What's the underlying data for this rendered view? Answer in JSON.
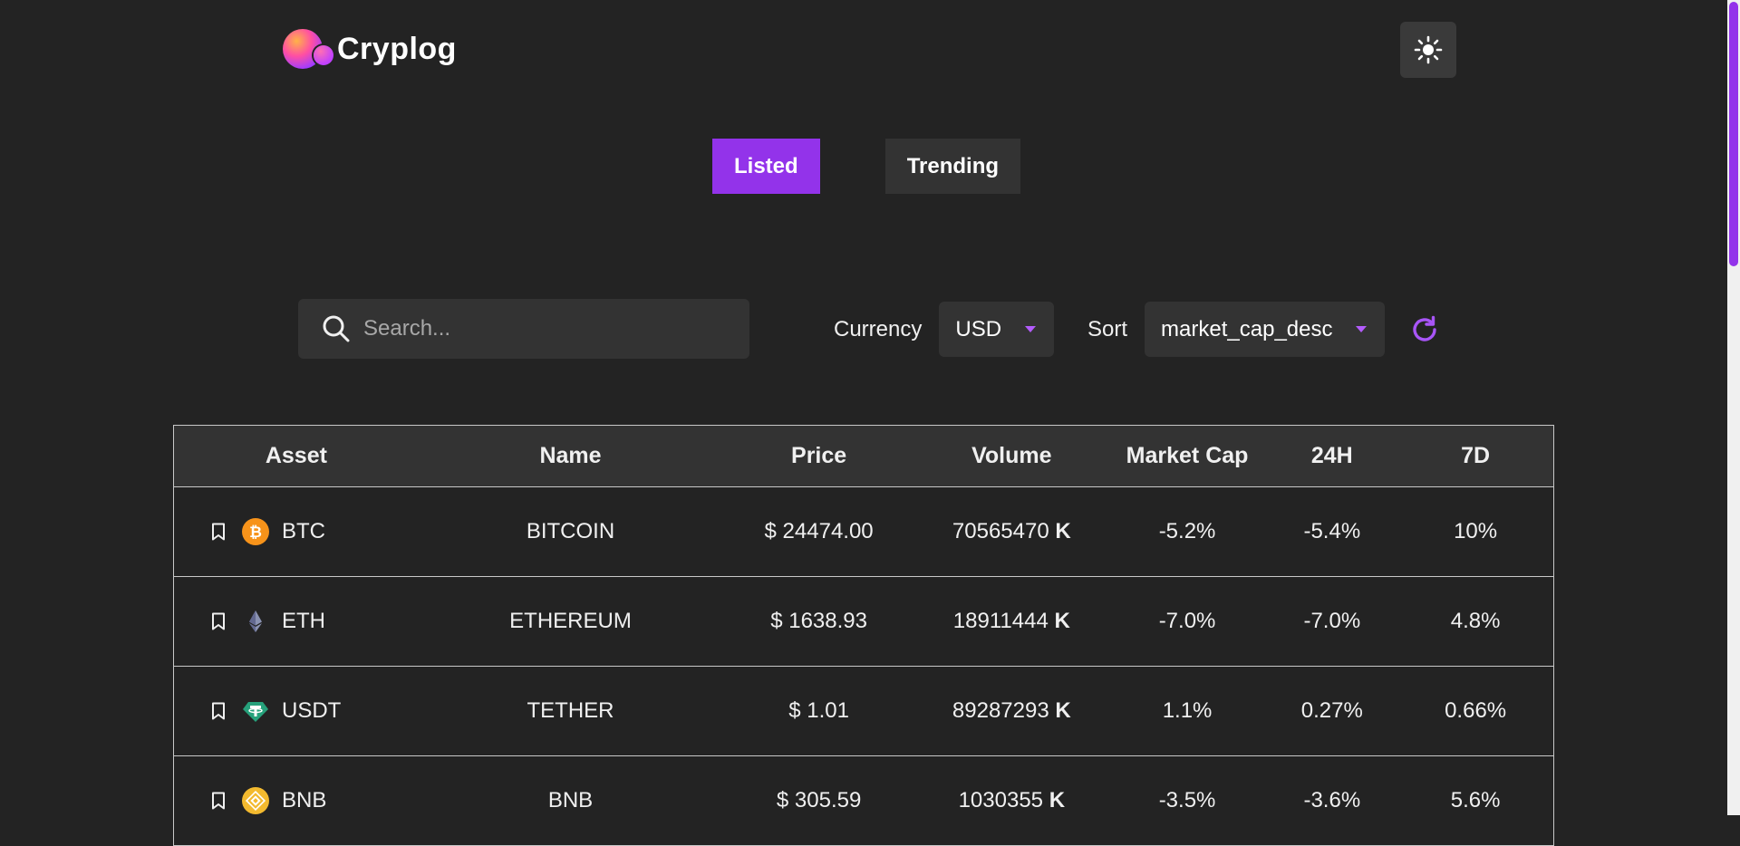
{
  "app": {
    "logo_text": "Cryplog"
  },
  "header": {
    "theme_icon": "sun-icon"
  },
  "tabs": [
    {
      "label": "Listed",
      "active": true
    },
    {
      "label": "Trending",
      "active": false
    }
  ],
  "search": {
    "placeholder": "Search...",
    "value": ""
  },
  "filters": {
    "currency_label": "Currency",
    "currency_value": "USD",
    "sort_label": "Sort",
    "sort_value": "market_cap_desc"
  },
  "table": {
    "columns": [
      "Asset",
      "Name",
      "Price",
      "Volume",
      "Market Cap",
      "24H",
      "7D"
    ],
    "rows": [
      {
        "symbol": "BTC",
        "name": "BITCOIN",
        "price": "$ 24474.00",
        "volume": "70565470",
        "volume_unit": "K",
        "market_cap": "-5.2%",
        "h24": "-5.4%",
        "d7": "10%",
        "icon": "bitcoin-icon"
      },
      {
        "symbol": "ETH",
        "name": "ETHEREUM",
        "price": "$ 1638.93",
        "volume": "18911444",
        "volume_unit": "K",
        "market_cap": "-7.0%",
        "h24": "-7.0%",
        "d7": "4.8%",
        "icon": "ethereum-icon"
      },
      {
        "symbol": "USDT",
        "name": "TETHER",
        "price": "$ 1.01",
        "volume": "89287293",
        "volume_unit": "K",
        "market_cap": "1.1%",
        "h24": "0.27%",
        "d7": "0.66%",
        "icon": "tether-icon"
      },
      {
        "symbol": "BNB",
        "name": "BNB",
        "price": "$ 305.59",
        "volume": "1030355",
        "volume_unit": "K",
        "market_cap": "-3.5%",
        "h24": "-3.6%",
        "d7": "5.6%",
        "icon": "bnb-icon"
      }
    ]
  },
  "colors": {
    "accent": "#9333ea",
    "positive": "#22c55e",
    "negative": "#f05b5b",
    "background": "#232323",
    "panel": "#333333"
  }
}
